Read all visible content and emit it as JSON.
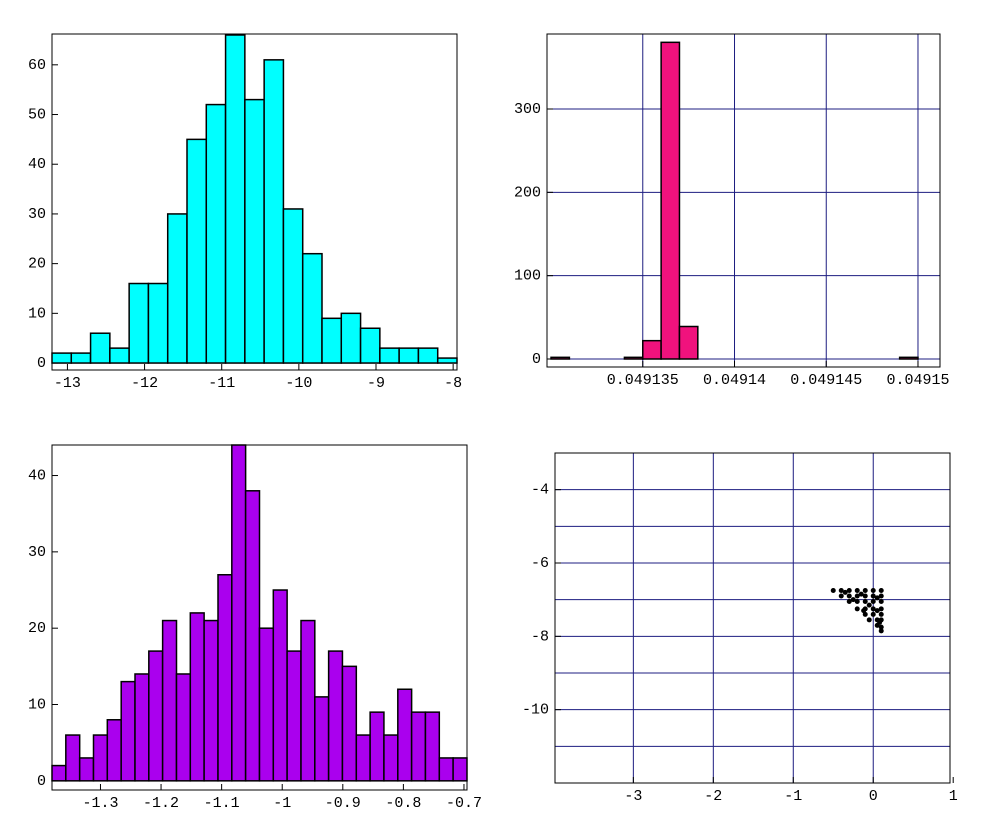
{
  "chart_data": [
    {
      "type": "histogram",
      "color": "#00ffff",
      "bins": [
        -13.2,
        -12.95,
        -12.7,
        -12.45,
        -12.2,
        -11.95,
        -11.7,
        -11.45,
        -11.2,
        -10.95,
        -10.7,
        -10.45,
        -10.2,
        -9.95,
        -9.7,
        -9.45,
        -9.2,
        -8.95,
        -8.7,
        -8.45,
        -8.2,
        -7.95
      ],
      "values": [
        2,
        2,
        6,
        3,
        16,
        16,
        30,
        45,
        52,
        66,
        53,
        61,
        31,
        22,
        9,
        10,
        7,
        3,
        3,
        3,
        1
      ],
      "xlim": [
        -13.2,
        -7.95
      ],
      "ylim": [
        -1.4,
        66.2
      ],
      "xticks": [
        -13,
        -12,
        -11,
        -10,
        -9,
        -8
      ],
      "yticks": [
        0,
        10,
        20,
        30,
        40,
        50,
        60
      ],
      "grid": false
    },
    {
      "type": "histogram",
      "color": "#f0127d",
      "grid_color": "#1c1c80",
      "bins": [
        0.04913,
        0.049131,
        0.049132,
        0.049133,
        0.049134,
        0.049135,
        0.049136,
        0.049137,
        0.049138,
        0.049139,
        0.04914,
        0.049141,
        0.049142,
        0.049143,
        0.049144,
        0.049145,
        0.049146,
        0.049147,
        0.049148,
        0.049149,
        0.04915,
        0.049151
      ],
      "values": [
        2,
        0,
        0,
        0,
        2,
        22,
        380,
        39,
        0,
        0,
        0,
        0,
        0,
        0,
        0,
        0,
        0,
        0,
        0,
        2,
        0
      ],
      "xlim": [
        0.04912978,
        0.0491512
      ],
      "ylim": [
        -9.6,
        390
      ],
      "xticks": [
        0.049135,
        0.04914,
        0.049145,
        0.04915
      ],
      "yticks": [
        0,
        100,
        200,
        300
      ],
      "grid": true
    },
    {
      "type": "histogram",
      "color": "#aa00ee",
      "bins": [
        -1.38,
        -1.3572,
        -1.3343,
        -1.3115,
        -1.2887,
        -1.2658,
        -1.243,
        -1.2202,
        -1.1974,
        -1.1745,
        -1.1517,
        -1.1289,
        -1.106,
        -1.0832,
        -1.0604,
        -1.0375,
        -1.0147,
        -0.9919,
        -0.969,
        -0.9462,
        -0.9234,
        -0.9006,
        -0.8777,
        -0.8549,
        -0.8321,
        -0.8092,
        -0.7864,
        -0.7636,
        -0.7407,
        -0.7179,
        -0.695
      ],
      "values": [
        2,
        6,
        3,
        6,
        8,
        13,
        14,
        17,
        21,
        14,
        22,
        21,
        27,
        44,
        38,
        20,
        25,
        17,
        21,
        11,
        17,
        15,
        6,
        9,
        6,
        12,
        9,
        9,
        3,
        3
      ],
      "xlim": [
        -1.38,
        -0.695
      ],
      "ylim": [
        -1.2,
        44
      ],
      "xticks": [
        -1.3,
        -1.2,
        -1.1,
        -1,
        -0.9,
        -0.8,
        -0.7
      ],
      "yticks": [
        0,
        10,
        20,
        30,
        40
      ],
      "grid": false
    },
    {
      "type": "scatter",
      "color": "#000000",
      "grid_color": "#1c1c80",
      "x": [
        -0.5,
        -0.4,
        -0.3,
        -0.2,
        -0.1,
        0,
        0.1,
        -0.4,
        -0.3,
        -0.2,
        -0.1,
        0,
        0.1,
        -0.3,
        -0.2,
        -0.1,
        0,
        0.1,
        -0.2,
        -0.1,
        0,
        0.1,
        -0.1,
        0,
        0.1,
        -0.05,
        0.05,
        0.1,
        0.05,
        0.1,
        0.1,
        -0.35,
        -0.15,
        0.05,
        -0.25,
        -0.05,
        0.05,
        -0.12,
        0.08
      ],
      "y": [
        -6.75,
        -6.75,
        -6.75,
        -6.75,
        -6.75,
        -6.75,
        -6.75,
        -6.9,
        -6.9,
        -6.9,
        -6.9,
        -6.9,
        -6.9,
        -7.05,
        -7.05,
        -7.05,
        -7.05,
        -7.05,
        -7.25,
        -7.25,
        -7.25,
        -7.25,
        -7.4,
        -7.4,
        -7.4,
        -7.55,
        -7.55,
        -7.55,
        -7.7,
        -7.75,
        -7.85,
        -6.8,
        -6.85,
        -6.95,
        -7.0,
        -7.15,
        -7.3,
        -7.3,
        -7.62
      ],
      "xlim": [
        -3.98,
        0.96
      ],
      "ylim": [
        -12,
        -3
      ],
      "xticks": [
        -3,
        -2,
        -1,
        0,
        1
      ],
      "yticks": [
        -4,
        -6,
        -8,
        -10
      ],
      "yminorticks": [
        -3,
        -5,
        -7,
        -9,
        -11
      ],
      "grid": true
    }
  ]
}
